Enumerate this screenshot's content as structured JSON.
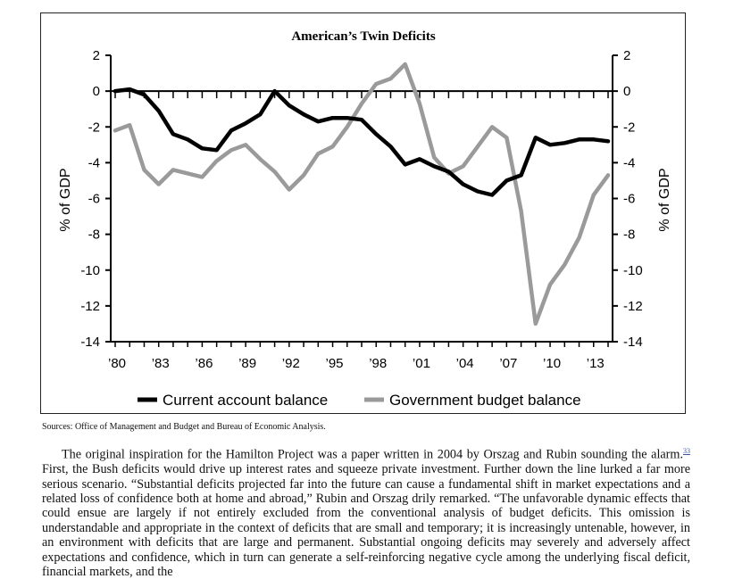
{
  "chart_data": {
    "type": "line",
    "title": "American’s Twin Deficits",
    "ylabel_left": "% of GDP",
    "ylabel_right": "% of GDP",
    "ylim": [
      -14,
      2
    ],
    "xlim": [
      1980,
      2014
    ],
    "yticks": [
      2,
      0,
      -2,
      -4,
      -6,
      -8,
      -10,
      -12,
      -14
    ],
    "xticks": [
      1980,
      1983,
      1986,
      1989,
      1992,
      1995,
      1998,
      2001,
      2004,
      2007,
      2010,
      2013
    ],
    "xtick_labels": [
      "’80",
      "’83",
      "’86",
      "’89",
      "’92",
      "’95",
      "’98",
      "’01",
      "’04",
      "’07",
      "’10",
      "’13"
    ],
    "grid": false,
    "legend_position": "bottom",
    "x": [
      1980,
      1981,
      1982,
      1983,
      1984,
      1985,
      1986,
      1987,
      1988,
      1989,
      1990,
      1991,
      1992,
      1993,
      1994,
      1995,
      1996,
      1997,
      1998,
      1999,
      2000,
      2001,
      2002,
      2003,
      2004,
      2005,
      2006,
      2007,
      2008,
      2009,
      2010,
      2011,
      2012,
      2013,
      2014
    ],
    "series": [
      {
        "name": "Current account balance",
        "color": "#000000",
        "values": [
          0.0,
          0.1,
          -0.2,
          -1.1,
          -2.4,
          -2.7,
          -3.2,
          -3.3,
          -2.2,
          -1.8,
          -1.3,
          0.0,
          -0.8,
          -1.3,
          -1.7,
          -1.5,
          -1.5,
          -1.6,
          -2.4,
          -3.1,
          -4.1,
          -3.8,
          -4.2,
          -4.5,
          -5.2,
          -5.6,
          -5.8,
          -5.0,
          -4.7,
          -2.6,
          -3.0,
          -2.9,
          -2.7,
          -2.7,
          -2.8
        ]
      },
      {
        "name": "Government budget balance",
        "color": "#9a9a9a",
        "values": [
          -2.2,
          -1.9,
          -4.4,
          -5.2,
          -4.4,
          -4.6,
          -4.8,
          -3.9,
          -3.3,
          -3.0,
          -3.8,
          -4.5,
          -5.5,
          -4.7,
          -3.5,
          -3.1,
          -2.0,
          -0.7,
          0.4,
          0.7,
          1.5,
          -0.7,
          -3.7,
          -4.6,
          -4.2,
          -3.1,
          -2.0,
          -2.6,
          -6.7,
          -13.0,
          -10.8,
          -9.7,
          -8.2,
          -5.8,
          -4.7
        ]
      }
    ]
  },
  "sources": "Sources: Office of Management and Budget and Bureau of Economic Analysis.",
  "body": {
    "part1": "The original inspiration for the Hamilton Project was a paper written in 2004 by Orszag and Rubin sounding the alarm.",
    "footnote_mark": "33",
    "part2": " First, the Bush deficits would drive up interest rates and squeeze private investment. Further down the line lurked a far more serious scenario. “Substantial deficits projected far into the future can cause a fundamental shift in market expectations and a related loss of confidence both at home and abroad,” Rubin and Orszag drily remarked. “The unfavorable dynamic effects that could ensue are largely if not entirely excluded from the conventional analysis of budget deficits. This omission is understandable and appropriate in the context of deficits that are small and temporary; it is increasingly untenable, however, in an environment with deficits that are large and permanent. Substantial ongoing deficits may severely and adversely affect expectations and confidence, which in turn can generate a self-reinforcing negative cycle among the underlying fiscal deficit, financial markets, and the"
  }
}
